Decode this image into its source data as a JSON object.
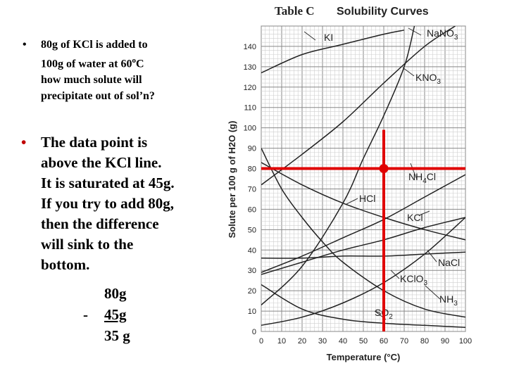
{
  "bullet_symbol": "•",
  "bullet1": {
    "lines": [
      "80g of KCl is added to",
      "100g of water at 60",
      "how much solute will",
      "precipitate out of sol’n?"
    ],
    "degree_sup": "o",
    "line2_tail": "C"
  },
  "bullet2": {
    "lines": [
      "The data point is",
      "above the KCl line.",
      "It is saturated at 45g.",
      "If you try to add 80g,",
      "then the difference",
      "will sink to the",
      "bottom."
    ]
  },
  "calculation": {
    "line1": "80g",
    "minus": "-",
    "line2": "45g",
    "result": "35 g"
  },
  "chart_data": {
    "type": "line",
    "title_prefix": "Table C",
    "title": "Solubility Curves",
    "xlabel": "Temperature (°C)",
    "ylabel": "Solute per 100 g of H2O (g)",
    "xlim": [
      0,
      100
    ],
    "ylim": [
      0,
      150
    ],
    "xticks": [
      0,
      10,
      20,
      30,
      40,
      50,
      60,
      70,
      80,
      90,
      100
    ],
    "yticks": [
      0,
      10,
      20,
      30,
      40,
      50,
      60,
      70,
      80,
      90,
      100,
      110,
      120,
      130,
      140
    ],
    "grid": true,
    "series": [
      {
        "name": "KI",
        "x": [
          0,
          20,
          40,
          60,
          70
        ],
        "y": [
          127,
          136,
          141,
          146,
          148
        ]
      },
      {
        "name": "NaNO3",
        "x": [
          0,
          20,
          40,
          60,
          80,
          95
        ],
        "y": [
          72,
          87,
          103,
          122,
          140,
          150
        ]
      },
      {
        "name": "KNO3",
        "x": [
          0,
          20,
          40,
          50,
          60,
          70,
          75
        ],
        "y": [
          13,
          32,
          63,
          85,
          106,
          130,
          150
        ]
      },
      {
        "name": "NH4Cl",
        "x": [
          0,
          20,
          40,
          60,
          80,
          100
        ],
        "y": [
          29,
          37,
          46,
          55,
          66,
          77
        ]
      },
      {
        "name": "HCl",
        "x": [
          0,
          20,
          40,
          60,
          80,
          100
        ],
        "y": [
          83,
          72,
          63,
          56,
          50,
          45
        ]
      },
      {
        "name": "KCl",
        "x": [
          0,
          20,
          40,
          60,
          80,
          100
        ],
        "y": [
          28,
          34,
          40,
          45,
          51,
          56
        ]
      },
      {
        "name": "NaCl",
        "x": [
          0,
          20,
          40,
          60,
          80,
          100
        ],
        "y": [
          36,
          36,
          37,
          37,
          38,
          39
        ]
      },
      {
        "name": "KClO3",
        "x": [
          0,
          20,
          40,
          60,
          80,
          100
        ],
        "y": [
          3,
          7,
          14,
          24,
          38,
          56
        ]
      },
      {
        "name": "NH3",
        "x": [
          0,
          10,
          20,
          30,
          40,
          60,
          80,
          100
        ],
        "y": [
          90,
          70,
          56,
          44,
          34,
          20,
          11,
          7
        ]
      },
      {
        "name": "SO2",
        "x": [
          0,
          20,
          40,
          60,
          80,
          100
        ],
        "y": [
          23,
          11,
          6,
          4,
          3,
          2
        ]
      }
    ],
    "label_notes": [
      "KI",
      "NaNO3",
      "KNO3",
      "NH4Cl",
      "HCl",
      "KCl",
      "NaCl",
      "KClO3",
      "NH3",
      "SO2"
    ],
    "annotation": {
      "x": 60,
      "y": 80,
      "color": "#e00000"
    }
  }
}
